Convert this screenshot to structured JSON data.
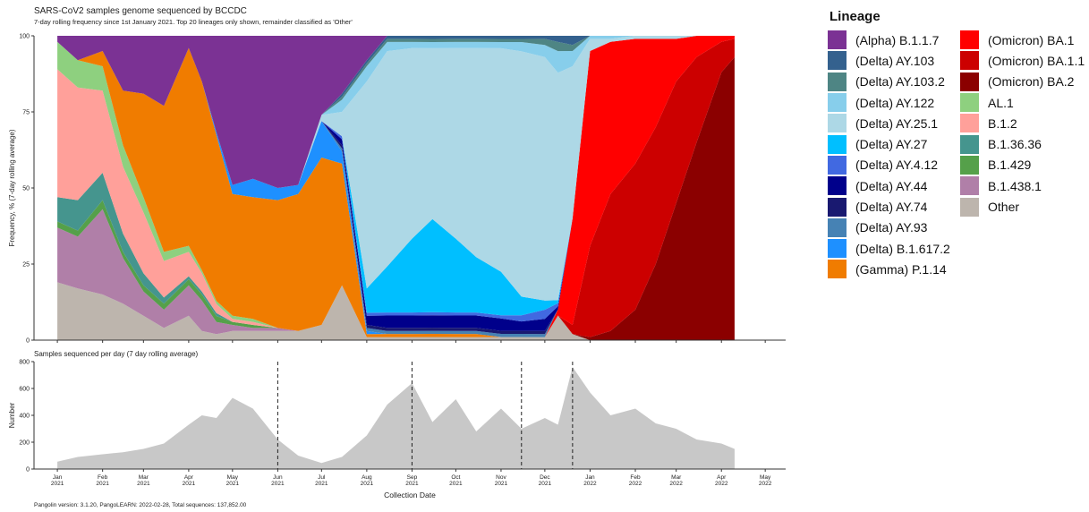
{
  "chart_data": [
    {
      "type": "area",
      "title": "SARS-CoV2 samples genome sequenced by BCCDC",
      "subtitle": "7-day rolling frequency since 1st January 2021.  Top 20 lineages only shown, remainder classified as 'Other'",
      "ylabel": "Frequency, % (7-day rolling average)",
      "ylim": [
        0,
        100
      ],
      "yticks": [
        "0",
        "25",
        "50",
        "75",
        "100"
      ],
      "stacked": true,
      "grid": false,
      "legend_position": "right",
      "x": [
        "2021-01-01",
        "2021-01-15",
        "2021-02-01",
        "2021-02-15",
        "2021-03-01",
        "2021-03-15",
        "2021-04-01",
        "2021-04-10",
        "2021-04-20",
        "2021-05-01",
        "2021-05-15",
        "2021-06-01",
        "2021-06-15",
        "2021-07-01",
        "2021-07-15",
        "2021-08-01",
        "2021-08-15",
        "2021-09-01",
        "2021-09-15",
        "2021-10-01",
        "2021-10-15",
        "2021-11-01",
        "2021-11-15",
        "2021-12-01",
        "2021-12-10",
        "2021-12-20",
        "2022-01-01",
        "2022-01-15",
        "2022-02-01",
        "2022-02-15",
        "2022-03-01",
        "2022-03-15",
        "2022-04-01",
        "2022-04-10"
      ],
      "series": [
        {
          "name": "Other",
          "values": [
            19,
            17,
            15,
            12,
            8,
            4,
            8,
            3,
            2,
            3,
            3,
            3,
            3,
            5,
            18,
            1,
            1,
            1,
            1,
            1,
            1,
            1,
            1,
            1,
            8,
            2,
            0,
            0,
            0,
            0,
            0,
            0,
            0,
            0
          ]
        },
        {
          "name": "B.1.438.1",
          "values": [
            18,
            17,
            28,
            15,
            8,
            6,
            10,
            10,
            4,
            2,
            1,
            1,
            0,
            0,
            0,
            0,
            0,
            0,
            0,
            0,
            0,
            0,
            0,
            0,
            0,
            0,
            0,
            0,
            0,
            0,
            0,
            0,
            0,
            0
          ]
        },
        {
          "name": "B.1.429",
          "values": [
            2,
            2,
            3,
            2,
            2,
            2,
            2,
            2,
            2,
            1,
            1,
            0,
            0,
            0,
            0,
            0,
            0,
            0,
            0,
            0,
            0,
            0,
            0,
            0,
            0,
            0,
            0,
            0,
            0,
            0,
            0,
            0,
            0,
            0
          ]
        },
        {
          "name": "B.1.36.36",
          "values": [
            8,
            10,
            9,
            6,
            4,
            2,
            1,
            1,
            1,
            0,
            0,
            0,
            0,
            0,
            0,
            0,
            0,
            0,
            0,
            0,
            0,
            0,
            0,
            0,
            0,
            0,
            0,
            0,
            0,
            0,
            0,
            0,
            0,
            0
          ]
        },
        {
          "name": "B.1.2",
          "values": [
            42,
            37,
            27,
            22,
            20,
            12,
            8,
            6,
            3,
            1,
            1,
            0,
            0,
            0,
            0,
            0,
            0,
            0,
            0,
            0,
            0,
            0,
            0,
            0,
            0,
            0,
            0,
            0,
            0,
            0,
            0,
            0,
            0,
            0
          ]
        },
        {
          "name": "AL.1",
          "values": [
            9,
            9,
            8,
            7,
            5,
            3,
            2,
            1,
            1,
            1,
            1,
            0,
            0,
            0,
            0,
            0,
            0,
            0,
            0,
            0,
            0,
            0,
            0,
            0,
            0,
            0,
            0,
            0,
            0,
            0,
            0,
            0,
            0,
            0
          ]
        },
        {
          "name": "(Omicron) BA.2",
          "values": [
            0,
            0,
            0,
            0,
            0,
            0,
            0,
            0,
            0,
            0,
            0,
            0,
            0,
            0,
            0,
            0,
            0,
            0,
            0,
            0,
            0,
            0,
            0,
            0,
            0,
            0,
            1,
            3,
            10,
            25,
            45,
            65,
            88,
            93
          ]
        },
        {
          "name": "(Omicron) BA.1.1",
          "values": [
            0,
            0,
            0,
            0,
            0,
            0,
            0,
            0,
            0,
            0,
            0,
            0,
            0,
            0,
            0,
            0,
            0,
            0,
            0,
            0,
            0,
            0,
            0,
            0,
            0,
            3,
            30,
            45,
            48,
            45,
            40,
            28,
            10,
            6
          ]
        },
        {
          "name": "(Omicron) BA.1",
          "values": [
            0,
            0,
            0,
            0,
            0,
            0,
            0,
            0,
            0,
            0,
            0,
            0,
            0,
            0,
            0,
            0,
            0,
            0,
            0,
            0,
            0,
            0,
            0,
            0,
            2,
            35,
            64,
            50,
            41,
            29,
            14,
            7,
            2,
            1
          ]
        },
        {
          "name": "(Gamma) P.1.14",
          "values": [
            0,
            0,
            5,
            18,
            34,
            48,
            65,
            62,
            55,
            40,
            40,
            42,
            45,
            55,
            40,
            1,
            1,
            1,
            1,
            1,
            1,
            0,
            0,
            0,
            0,
            0,
            0,
            0,
            0,
            0,
            0,
            0,
            0,
            0
          ]
        },
        {
          "name": "(Delta) B.1.617.2",
          "values": [
            0,
            0,
            0,
            0,
            0,
            0,
            0,
            0,
            1,
            3,
            6,
            4,
            3,
            12,
            4,
            1,
            0,
            0,
            0,
            0,
            0,
            0,
            0,
            0,
            0,
            0,
            0,
            0,
            0,
            0,
            0,
            0,
            0,
            0
          ]
        },
        {
          "name": "(Delta) AY.93",
          "values": [
            0,
            0,
            0,
            0,
            0,
            0,
            0,
            0,
            0,
            0,
            0,
            0,
            0,
            0,
            1,
            1,
            1,
            1,
            1,
            1,
            1,
            1,
            1,
            1,
            0,
            0,
            0,
            0,
            0,
            0,
            0,
            0,
            0,
            0
          ]
        },
        {
          "name": "(Delta) AY.74",
          "values": [
            0,
            0,
            0,
            0,
            0,
            0,
            0,
            0,
            0,
            0,
            0,
            0,
            0,
            0,
            1,
            1,
            1,
            1,
            1,
            1,
            1,
            1,
            1,
            1,
            0,
            0,
            0,
            0,
            0,
            0,
            0,
            0,
            0,
            0
          ]
        },
        {
          "name": "(Delta) AY.44",
          "values": [
            0,
            0,
            0,
            0,
            0,
            0,
            0,
            0,
            0,
            0,
            0,
            0,
            0,
            0,
            2,
            3,
            4,
            4,
            4,
            4,
            4,
            4,
            3,
            4,
            1,
            0,
            0,
            0,
            0,
            0,
            0,
            0,
            0,
            0
          ]
        },
        {
          "name": "(Delta) AY.4.12",
          "values": [
            0,
            0,
            0,
            0,
            0,
            0,
            0,
            0,
            0,
            0,
            0,
            0,
            0,
            0,
            1,
            1,
            1,
            1,
            1,
            1,
            1,
            1,
            2,
            3,
            1,
            0,
            0,
            0,
            0,
            0,
            0,
            0,
            0,
            0
          ]
        },
        {
          "name": "(Delta) AY.27",
          "values": [
            0,
            0,
            0,
            0,
            0,
            0,
            0,
            0,
            0,
            0,
            0,
            0,
            0,
            0,
            0,
            8,
            15,
            24,
            30,
            24,
            18,
            14,
            6,
            3,
            1,
            0,
            0,
            0,
            0,
            0,
            0,
            0,
            0,
            0
          ]
        },
        {
          "name": "(Delta) AY.25.1",
          "values": [
            0,
            0,
            0,
            0,
            0,
            0,
            0,
            0,
            0,
            0,
            0,
            0,
            0,
            2,
            8,
            68,
            70,
            62,
            55,
            62,
            68,
            72,
            79,
            80,
            74,
            50,
            4,
            1,
            1,
            1,
            1,
            0,
            0,
            0
          ]
        },
        {
          "name": "(Delta) AY.122",
          "values": [
            0,
            0,
            0,
            0,
            0,
            0,
            0,
            0,
            0,
            0,
            0,
            0,
            0,
            0,
            4,
            5,
            3,
            2,
            2,
            2,
            2,
            2,
            3,
            4,
            7,
            5,
            1,
            1,
            0,
            0,
            0,
            0,
            0,
            0
          ]
        },
        {
          "name": "(Delta) AY.103.2",
          "values": [
            0,
            0,
            0,
            0,
            0,
            0,
            0,
            0,
            0,
            0,
            0,
            0,
            0,
            0,
            1,
            1,
            1,
            1,
            1,
            1,
            1,
            1,
            1,
            2,
            3,
            2,
            0,
            0,
            0,
            0,
            0,
            0,
            0,
            0
          ]
        },
        {
          "name": "(Delta) AY.103",
          "values": [
            0,
            0,
            0,
            0,
            0,
            0,
            0,
            0,
            0,
            0,
            0,
            0,
            0,
            0,
            1,
            1,
            1,
            1,
            1,
            1,
            1,
            1,
            1,
            1,
            2,
            3,
            0,
            0,
            0,
            0,
            0,
            0,
            0,
            0
          ]
        },
        {
          "name": "(Alpha) B.1.1.7",
          "values": [
            2,
            8,
            5,
            18,
            19,
            23,
            4,
            15,
            32,
            49,
            47,
            50,
            49,
            26,
            19,
            8,
            0,
            0,
            0,
            0,
            0,
            0,
            0,
            0,
            0,
            0,
            0,
            0,
            0,
            0,
            0,
            0,
            0,
            0
          ]
        }
      ]
    },
    {
      "type": "bar",
      "title": "Samples sequenced per day (7 day rolling average)",
      "xlabel": "Collection Date",
      "ylabel": "Number",
      "ylim": [
        0,
        800
      ],
      "yticks": [
        "0",
        "200",
        "400",
        "600",
        "800"
      ],
      "x": [
        "2021-01-01",
        "2021-01-15",
        "2021-02-01",
        "2021-02-15",
        "2021-03-01",
        "2021-03-15",
        "2021-04-01",
        "2021-04-10",
        "2021-04-20",
        "2021-05-01",
        "2021-05-15",
        "2021-06-01",
        "2021-06-15",
        "2021-07-01",
        "2021-07-15",
        "2021-08-01",
        "2021-08-15",
        "2021-09-01",
        "2021-09-15",
        "2021-10-01",
        "2021-10-15",
        "2021-11-01",
        "2021-11-15",
        "2021-12-01",
        "2021-12-10",
        "2021-12-20",
        "2022-01-01",
        "2022-01-15",
        "2022-02-01",
        "2022-02-15",
        "2022-03-01",
        "2022-03-15",
        "2022-04-01",
        "2022-04-10"
      ],
      "values": [
        55,
        90,
        110,
        125,
        150,
        190,
        330,
        400,
        380,
        530,
        450,
        220,
        100,
        45,
        90,
        250,
        480,
        640,
        350,
        520,
        280,
        450,
        300,
        380,
        330,
        760,
        570,
        400,
        450,
        340,
        300,
        220,
        190,
        150
      ],
      "vlines": [
        "2021-06-01",
        "2021-09-01",
        "2021-11-15",
        "2021-12-20"
      ],
      "xticks": [
        {
          "month": "Jan",
          "year": "2021"
        },
        {
          "month": "Feb",
          "year": "2021"
        },
        {
          "month": "Mar",
          "year": "2021"
        },
        {
          "month": "Apr",
          "year": "2021"
        },
        {
          "month": "May",
          "year": "2021"
        },
        {
          "month": "Jun",
          "year": "2021"
        },
        {
          "month": "Jul",
          "year": "2021"
        },
        {
          "month": "Aug",
          "year": "2021"
        },
        {
          "month": "Sep",
          "year": "2021"
        },
        {
          "month": "Oct",
          "year": "2021"
        },
        {
          "month": "Nov",
          "year": "2021"
        },
        {
          "month": "Dec",
          "year": "2021"
        },
        {
          "month": "Jan",
          "year": "2022"
        },
        {
          "month": "Feb",
          "year": "2022"
        },
        {
          "month": "Mar",
          "year": "2022"
        },
        {
          "month": "Apr",
          "year": "2022"
        },
        {
          "month": "May",
          "year": "2022"
        }
      ]
    }
  ],
  "caption": "Pangolin version: 3.1.20,  PangoLEARN: 2022-02-28, Total sequences: 137,852.00",
  "legend": {
    "title": "Lineage",
    "items": [
      {
        "label": "(Alpha) B.1.1.7",
        "color": "#7B3294"
      },
      {
        "label": "(Delta) AY.103",
        "color": "#34618E"
      },
      {
        "label": "(Delta) AY.103.2",
        "color": "#4E8584"
      },
      {
        "label": "(Delta) AY.122",
        "color": "#87CEEB"
      },
      {
        "label": "(Delta) AY.25.1",
        "color": "#ADD8E6"
      },
      {
        "label": "(Delta) AY.27",
        "color": "#00BFFF"
      },
      {
        "label": "(Delta) AY.4.12",
        "color": "#4169E1"
      },
      {
        "label": "(Delta) AY.44",
        "color": "#00008B"
      },
      {
        "label": "(Delta) AY.74",
        "color": "#191970"
      },
      {
        "label": "(Delta) AY.93",
        "color": "#4682B4"
      },
      {
        "label": "(Delta) B.1.617.2",
        "color": "#1E90FF"
      },
      {
        "label": "(Gamma) P.1.14",
        "color": "#F07C00"
      },
      {
        "label": "(Omicron) BA.1",
        "color": "#FF0000"
      },
      {
        "label": "(Omicron) BA.1.1",
        "color": "#CC0000"
      },
      {
        "label": "(Omicron) BA.2",
        "color": "#8B0000"
      },
      {
        "label": "AL.1",
        "color": "#8ED07F"
      },
      {
        "label": "B.1.2",
        "color": "#FFA09A"
      },
      {
        "label": "B.1.36.36",
        "color": "#45958E"
      },
      {
        "label": "B.1.429",
        "color": "#55A04A"
      },
      {
        "label": "B.1.438.1",
        "color": "#B07FA8"
      },
      {
        "label": "Other",
        "color": "#BDB5AD"
      }
    ]
  }
}
